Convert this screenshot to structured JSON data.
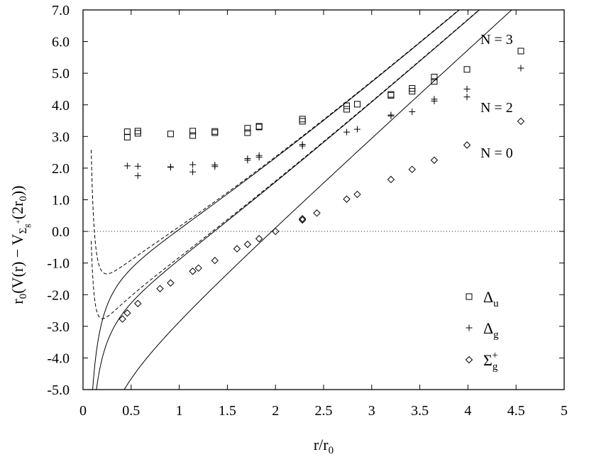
{
  "chart_data": {
    "type": "scatter",
    "xlabel": "r/r0",
    "ylabel": "r0(V(r) − VΣg+(2r0))",
    "xlim": [
      0,
      5
    ],
    "ylim": [
      -5,
      7
    ],
    "x_ticks": [
      "0",
      "0.5",
      "1",
      "1.5",
      "2",
      "2.5",
      "3",
      "3.5",
      "4",
      "4.5",
      "5"
    ],
    "y_ticks": [
      "-5.0",
      "-4.0",
      "-3.0",
      "-2.0",
      "-1.0",
      "0.0",
      "1.0",
      "2.0",
      "3.0",
      "4.0",
      "5.0",
      "6.0",
      "7.0"
    ],
    "zero_line": true,
    "grid": false,
    "legend_position": "bottom-right",
    "annotations": [
      "N = 3",
      "N = 2",
      "N = 0"
    ],
    "series": [
      {
        "name": "Δu",
        "marker": "square",
        "points": [
          [
            0.46,
            3.15
          ],
          [
            0.46,
            2.98
          ],
          [
            0.57,
            3.17
          ],
          [
            0.57,
            3.1
          ],
          [
            0.91,
            3.08
          ],
          [
            1.14,
            3.17
          ],
          [
            1.14,
            3.03
          ],
          [
            1.37,
            3.16
          ],
          [
            1.37,
            3.12
          ],
          [
            1.71,
            3.26
          ],
          [
            1.71,
            3.12
          ],
          [
            1.83,
            3.32
          ],
          [
            1.83,
            3.3
          ],
          [
            2.28,
            3.55
          ],
          [
            2.28,
            3.48
          ],
          [
            2.74,
            3.97
          ],
          [
            2.74,
            3.86
          ],
          [
            2.85,
            4.02
          ],
          [
            3.2,
            4.33
          ],
          [
            3.2,
            4.3
          ],
          [
            3.42,
            4.52
          ],
          [
            3.42,
            4.43
          ],
          [
            3.65,
            4.88
          ],
          [
            3.65,
            4.74
          ],
          [
            3.99,
            5.12
          ],
          [
            4.55,
            5.7
          ]
        ]
      },
      {
        "name": "Δg",
        "marker": "plus",
        "points": [
          [
            0.46,
            2.07
          ],
          [
            0.57,
            2.06
          ],
          [
            0.57,
            1.76
          ],
          [
            0.91,
            2.04
          ],
          [
            0.91,
            2.03
          ],
          [
            1.14,
            2.11
          ],
          [
            1.14,
            1.88
          ],
          [
            1.37,
            2.1
          ],
          [
            1.37,
            2.05
          ],
          [
            1.71,
            2.3
          ],
          [
            1.71,
            2.25
          ],
          [
            1.83,
            2.4
          ],
          [
            1.83,
            2.35
          ],
          [
            2.28,
            2.75
          ],
          [
            2.28,
            2.7
          ],
          [
            2.74,
            3.14
          ],
          [
            2.85,
            3.23
          ],
          [
            3.2,
            3.68
          ],
          [
            3.2,
            3.65
          ],
          [
            3.42,
            3.78
          ],
          [
            3.65,
            4.18
          ],
          [
            3.65,
            4.12
          ],
          [
            3.99,
            4.5
          ],
          [
            3.99,
            4.25
          ],
          [
            4.55,
            5.16
          ]
        ]
      },
      {
        "name": "Σg+",
        "marker": "diamond",
        "points": [
          [
            0.41,
            -2.77
          ],
          [
            0.46,
            -2.58
          ],
          [
            0.57,
            -2.28
          ],
          [
            0.8,
            -1.81
          ],
          [
            0.91,
            -1.63
          ],
          [
            1.14,
            -1.26
          ],
          [
            1.2,
            -1.16
          ],
          [
            1.37,
            -0.92
          ],
          [
            1.6,
            -0.55
          ],
          [
            1.71,
            -0.41
          ],
          [
            1.83,
            -0.23
          ],
          [
            2.0,
            0.0
          ],
          [
            2.28,
            0.36
          ],
          [
            2.28,
            0.4
          ],
          [
            2.43,
            0.58
          ],
          [
            2.74,
            1.02
          ],
          [
            2.85,
            1.17
          ],
          [
            3.2,
            1.64
          ],
          [
            3.42,
            1.96
          ],
          [
            3.65,
            2.25
          ],
          [
            3.99,
            2.73
          ],
          [
            4.55,
            3.48
          ]
        ]
      }
    ]
  }
}
